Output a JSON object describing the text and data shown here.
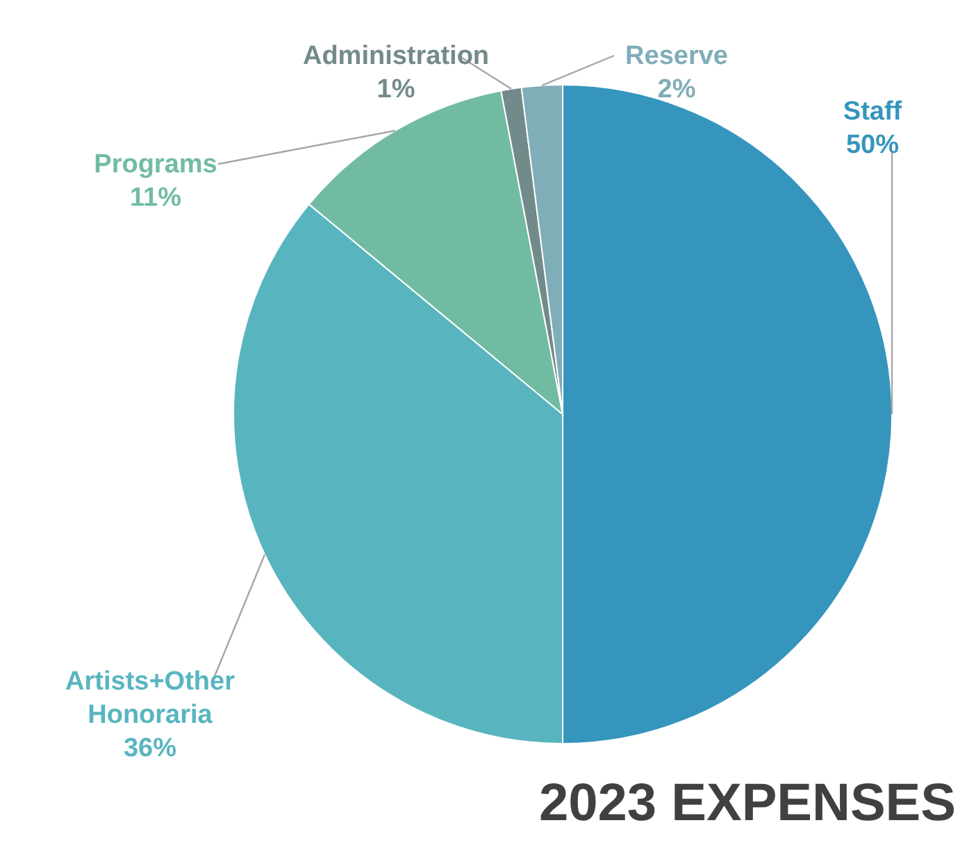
{
  "chart_data": {
    "type": "pie",
    "title": "2023 EXPENSES",
    "categories": [
      "Staff",
      "Artists+Other Honoraria",
      "Programs",
      "Administration",
      "Reserve"
    ],
    "values": [
      50,
      36,
      11,
      1,
      2
    ],
    "value_labels": [
      "50%",
      "36%",
      "11%",
      "1%",
      "2%"
    ],
    "colors": [
      "#3595bd",
      "#58b5c0",
      "#72bba3",
      "#738a8a",
      "#7fadb8"
    ]
  }
}
